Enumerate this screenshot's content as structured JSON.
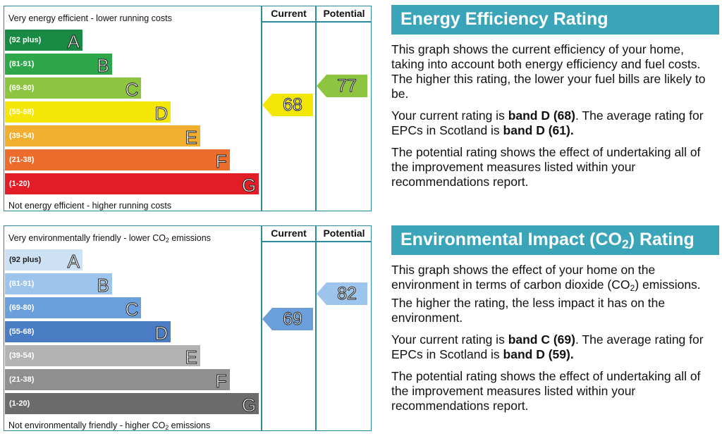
{
  "energy": {
    "top_note": "Very energy efficient - lower running costs",
    "bottom_note": "Not energy efficient - higher running costs",
    "header_current": "Current",
    "header_potential": "Potential",
    "bands": [
      {
        "range": "(92 plus)",
        "letter": "A",
        "color": "#198a43"
      },
      {
        "range": "(81-91)",
        "letter": "B",
        "color": "#2ea74b"
      },
      {
        "range": "(69-80)",
        "letter": "C",
        "color": "#8dc540"
      },
      {
        "range": "(55-68)",
        "letter": "D",
        "color": "#f4e607"
      },
      {
        "range": "(39-54)",
        "letter": "E",
        "color": "#f2ae2e"
      },
      {
        "range": "(21-38)",
        "letter": "F",
        "color": "#ec6c2c"
      },
      {
        "range": "(1-20)",
        "letter": "G",
        "color": "#e31d25"
      }
    ],
    "current": {
      "value": "68",
      "band": "D",
      "color": "#f4e607"
    },
    "potential": {
      "value": "77",
      "band": "C",
      "color": "#8dc540"
    },
    "panel_title": "Energy Efficiency Rating",
    "para1": "This graph shows the current efficiency of your home, taking into account both energy efficiency and fuel costs. The higher this rating, the lower your fuel bills are likely to be.",
    "para2_pre": "Your current rating is ",
    "para2_band": "band D (68)",
    "para2_mid": ". The average rating for EPCs in Scotland is ",
    "para2_avg": "band D (61).",
    "para3": "The potential rating shows the effect of undertaking all of the improvement measures listed within your recommendations report."
  },
  "environment": {
    "top_note_pre": "Very environmentally friendly - lower CO",
    "top_note_sub": "2",
    "top_note_post": " emissions",
    "bottom_note_pre": "Not environmentally friendly - higher CO",
    "bottom_note_sub": "2",
    "bottom_note_post": " emissions",
    "header_current": "Current",
    "header_potential": "Potential",
    "bands": [
      {
        "range": "(92 plus)",
        "letter": "A",
        "color": "#cde1f5"
      },
      {
        "range": "(81-91)",
        "letter": "B",
        "color": "#9cc4ec"
      },
      {
        "range": "(69-80)",
        "letter": "C",
        "color": "#6a9fdc"
      },
      {
        "range": "(55-68)",
        "letter": "D",
        "color": "#4a7cc4"
      },
      {
        "range": "(39-54)",
        "letter": "E",
        "color": "#b3b3b3"
      },
      {
        "range": "(21-38)",
        "letter": "F",
        "color": "#8f8f8f"
      },
      {
        "range": "(1-20)",
        "letter": "G",
        "color": "#6b6b6b"
      }
    ],
    "current": {
      "value": "69",
      "band": "C",
      "color": "#6a9fdc"
    },
    "potential": {
      "value": "82",
      "band": "B",
      "color": "#9cc4ec"
    },
    "panel_title_pre": "Environmental Impact (CO",
    "panel_title_sub": "2",
    "panel_title_post": ") Rating",
    "para1_pre": "This graph shows the effect of your home on the environment in terms of carbon dioxide (CO",
    "para1_sub": "2",
    "para1_post": ") emissions. The higher the rating, the less impact it has on the environment.",
    "para2_pre": "Your current rating is ",
    "para2_band": "band C (69)",
    "para2_mid": ". The average rating for EPCs in Scotland is ",
    "para2_avg": "band D (59).",
    "para3": "The potential rating shows the effect of undertaking all of the improvement measures listed within your recommendations report."
  }
}
